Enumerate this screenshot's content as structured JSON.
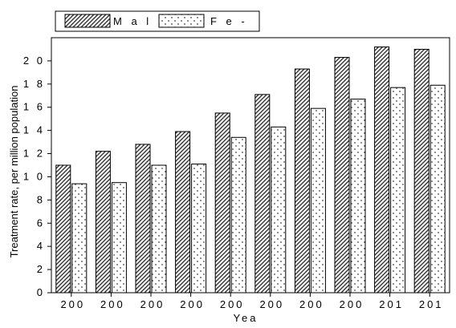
{
  "chart_data": {
    "type": "bar",
    "xlabel": "Yea",
    "ylabel": "Treatment rate, per million population",
    "ylim": [
      0,
      22
    ],
    "grid": false,
    "legend_position": "top-left",
    "categories": [
      "200",
      "200",
      "200",
      "200",
      "200",
      "200",
      "200",
      "200",
      "201",
      "201"
    ],
    "yticks": [
      0,
      2,
      4,
      6,
      8,
      10,
      12,
      14,
      16,
      18,
      20
    ],
    "ytick_labels": [
      "0",
      "2",
      "4",
      "6",
      "8",
      "1 0",
      "1 2",
      "1 4",
      "1 6",
      "1 8",
      "2 0"
    ],
    "series": [
      {
        "name": "M a l",
        "pattern": "diagonal-hatch",
        "values": [
          11.0,
          12.2,
          12.8,
          13.9,
          15.5,
          17.1,
          19.3,
          20.3,
          21.2,
          21.0
        ]
      },
      {
        "name": "F e -",
        "pattern": "dots",
        "values": [
          9.4,
          9.5,
          11.0,
          11.1,
          13.4,
          14.3,
          15.9,
          16.7,
          17.7,
          17.9
        ]
      }
    ]
  }
}
